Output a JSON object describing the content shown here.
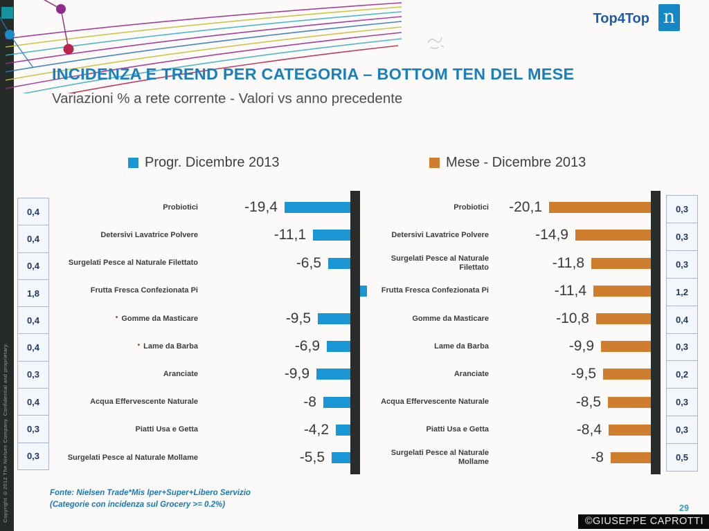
{
  "slide": {
    "brand": "Top4Top",
    "logo_letter": "n",
    "title": "INCIDENZA E TREND PER CATEGORIA – BOTTOM TEN DEL MESE",
    "subtitle": "Variazioni % a rete corrente - Valori vs anno precedente",
    "footer_source_line1": "Fonte: Nielsen Trade*Mis  Iper+Super+Libero Servizio",
    "footer_source_line2": "(Categorie con incidenza sul Grocery >= 0.2%)",
    "page_number": "29",
    "credit": "©GIUSEPPE CAPROTTI",
    "side_copyright": "Copyright ©2012 The Nielsen Company. Confidential and proprietary."
  },
  "colors": {
    "bar_blue": "#1B96D5",
    "bar_orange": "#CE7E2D",
    "title_blue": "#1A80BC",
    "axis_black": "#282C2B",
    "box_text_navy": "#1F3864"
  },
  "chart_data": [
    {
      "type": "bar",
      "orientation": "horizontal",
      "title": "Progr. Dicembre 2013",
      "color": "#1B96D5",
      "axis_side": "right",
      "categories": [
        "Probiotici",
        "Detersivi Lavatrice Polvere",
        "Surgelati Pesce al Naturale Filettato",
        "Frutta Fresca Confezionata Pi",
        "Gomme da Masticare",
        "Lame da Barba",
        "Aranciate",
        "Acqua Effervescente Naturale",
        "Piatti Usa e Getta",
        "Surgelati Pesce al Naturale Mollame"
      ],
      "values": [
        -19.4,
        -11.1,
        -6.5,
        2,
        -9.5,
        -6.9,
        -9.9,
        -8,
        -4.2,
        -5.5
      ],
      "value_labels": [
        "-19,4",
        "-11,1",
        "-6,5",
        "",
        "-9,5",
        "-6,9",
        "-9,9",
        "-8",
        "-4,2",
        "-5,5"
      ],
      "bullet_rows": [
        4,
        5
      ],
      "incidence_boxes": [
        "0,4",
        "0,4",
        "0,4",
        "1,8",
        "0,4",
        "0,4",
        "0,3",
        "0,4",
        "0,3",
        "0,3"
      ]
    },
    {
      "type": "bar",
      "orientation": "horizontal",
      "title": "Mese - Dicembre 2013",
      "color": "#CE7E2D",
      "axis_side": "right",
      "categories": [
        "Probiotici",
        "Detersivi Lavatrice Polvere",
        "Surgelati Pesce al Naturale Filettato",
        "Frutta Fresca Confezionata Pi",
        "Gomme da Masticare",
        "Lame da Barba",
        "Aranciate",
        "Acqua Effervescente Naturale",
        "Piatti Usa e Getta",
        "Surgelati Pesce al Naturale Mollame"
      ],
      "values": [
        -20.1,
        -14.9,
        -11.8,
        -11.4,
        -10.8,
        -9.9,
        -9.5,
        -8.5,
        -8.4,
        -8
      ],
      "value_labels": [
        "-20,1",
        "-14,9",
        "-11,8",
        "-11,4",
        "-10,8",
        "-9,9",
        "-9,5",
        "-8,5",
        "-8,4",
        "-8"
      ],
      "bullet_rows": [],
      "incidence_boxes": [
        "0,3",
        "0,3",
        "0,3",
        "1,2",
        "0,4",
        "0,3",
        "0,2",
        "0,3",
        "0,3",
        "0,5"
      ]
    }
  ]
}
